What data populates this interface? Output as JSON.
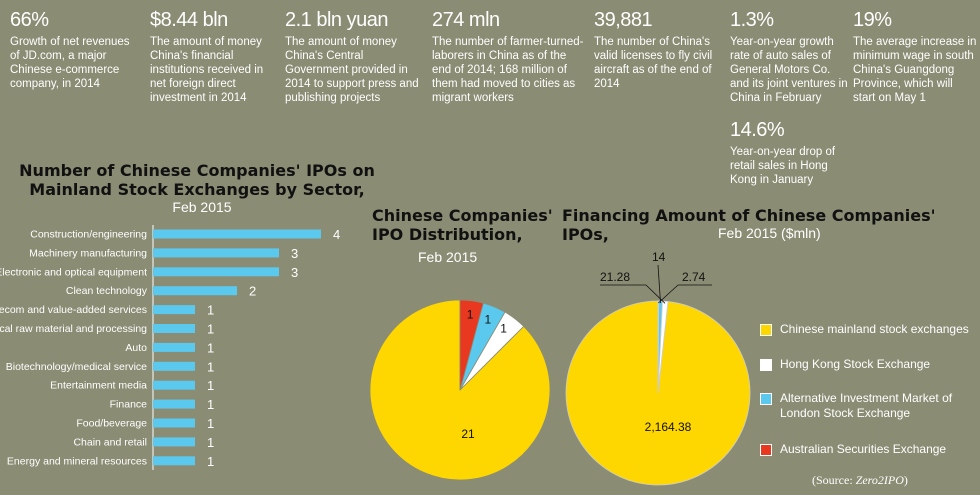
{
  "stats": [
    {
      "value": "66%",
      "desc": "Growth of net revenues of JD.com, a major Chinese e-commerce company, in 2014"
    },
    {
      "value": "$8.44 bln",
      "desc": "The amount of money China's financial institutions received in net foreign direct investment in 2014"
    },
    {
      "value": "2.1 bln yuan",
      "desc": "The amount of money China's Central Government provided in 2014 to support press and publishing projects"
    },
    {
      "value": "274 mln",
      "desc": "The number of farmer-turned-laborers in China as of the end of 2014; 168 million of them had moved to cities as migrant workers"
    },
    {
      "value": "39,881",
      "desc": "The number of China's valid licenses to fly civil aircraft as of the end of 2014"
    },
    {
      "value": "1.3%",
      "desc": "Year-on-year growth rate of auto sales of General Motors Co. and its joint ventures in China in February"
    },
    {
      "value": "19%",
      "desc": "The average increase in minimum wage in south China's Guangdong Province, which will start on May 1"
    },
    {
      "value": "14.6%",
      "desc": "Year-on-year drop of retail sales in Hong Kong in January"
    }
  ],
  "colors": {
    "background": "#8b8c74",
    "bar": "#5bc8ee",
    "mainland": "#ffd700",
    "hongkong": "#ffffff",
    "aim": "#5bc8ee",
    "asx": "#e8381f"
  },
  "chart_data": [
    {
      "type": "bar",
      "orientation": "horizontal",
      "title": "Number of Chinese Companies' IPOs on Mainland Stock Exchanges by Sector,",
      "subtitle": "Feb 2015",
      "categories": [
        "Construction/engineering",
        "Machinery manufacturing",
        "Electronic and optical equipment",
        "Clean technology",
        "Telecom and value-added services",
        "Chemical raw material and processing",
        "Auto",
        "Biotechnology/medical service",
        "Entertainment media",
        "Finance",
        "Food/beverage",
        "Chain and retail",
        "Energy and mineral resources"
      ],
      "values": [
        4,
        3,
        3,
        2,
        1,
        1,
        1,
        1,
        1,
        1,
        1,
        1,
        1
      ],
      "xlim": [
        0,
        4
      ]
    },
    {
      "type": "pie",
      "title": "Chinese Companies' IPO Distribution,",
      "subtitle": "Feb 2015",
      "labels": [
        "Chinese mainland stock exchanges",
        "Hong Kong Stock Exchange",
        "Alternative Investment Market of London Stock Exchange",
        "Australian Securities Exchange"
      ],
      "values": [
        21,
        1,
        1,
        1
      ],
      "value_labels": [
        "21",
        "1",
        "1",
        "1"
      ]
    },
    {
      "type": "pie",
      "title": "Financing Amount of Chinese Companies' IPOs,",
      "subtitle": "Feb 2015 ($mln)",
      "labels": [
        "Chinese mainland stock exchanges",
        "Hong Kong Stock Exchange",
        "Alternative Investment Market of London Stock Exchange",
        "Australian Securities Exchange"
      ],
      "values": [
        2164.38,
        21.28,
        14,
        2.74
      ],
      "value_labels": [
        "2,164.38",
        "21.28",
        "14",
        "2.74"
      ]
    }
  ],
  "legend": [
    {
      "label": "Chinese mainland stock exchanges",
      "color": "#ffd700"
    },
    {
      "label": "Hong Kong Stock Exchange",
      "color": "#ffffff"
    },
    {
      "label": "Alternative Investment Market of London Stock Exchange",
      "color": "#5bc8ee"
    },
    {
      "label": "Australian Securities Exchange",
      "color": "#e8381f"
    }
  ],
  "source": {
    "prefix": "(Source: ",
    "name": "Zero2IPO",
    "suffix": ")"
  }
}
